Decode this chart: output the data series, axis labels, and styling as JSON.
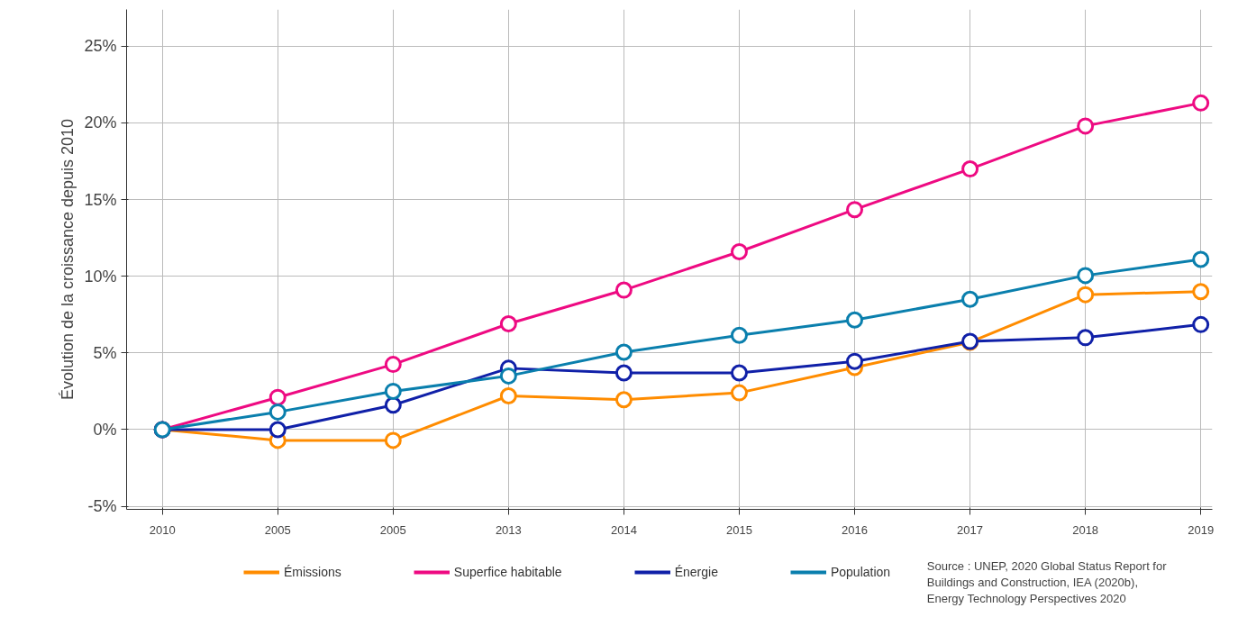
{
  "chart_data": {
    "type": "line",
    "ylabel": "Évolution de la croissance depuis 2010",
    "categories": [
      "2010",
      "2005",
      "2005",
      "2013",
      "2014",
      "2015",
      "2016",
      "2017",
      "2018",
      "2019"
    ],
    "series": [
      {
        "name": "Émissions",
        "color": "#ff8c00",
        "values": [
          0,
          -0.7,
          -0.7,
          2.2,
          1.95,
          2.4,
          4.05,
          5.7,
          8.8,
          9.0
        ]
      },
      {
        "name": "Superfice habitable",
        "color": "#ee0a82",
        "values": [
          0,
          2.1,
          4.25,
          6.9,
          9.1,
          11.6,
          14.35,
          17.0,
          19.8,
          21.3
        ]
      },
      {
        "name": "Énergie",
        "color": "#1020a8",
        "values": [
          0,
          0,
          1.6,
          4.0,
          3.7,
          3.7,
          4.45,
          5.75,
          6.0,
          6.85
        ]
      },
      {
        "name": "Population",
        "color": "#0a7fad",
        "values": [
          0,
          1.15,
          2.5,
          3.5,
          5.05,
          6.15,
          7.15,
          8.5,
          10.05,
          11.1
        ]
      }
    ],
    "ylim": [
      -5.2,
      27.4
    ],
    "yticks": [
      {
        "value": -5,
        "label": "-5%"
      },
      {
        "value": 0,
        "label": "0%"
      },
      {
        "value": 5,
        "label": "5%"
      },
      {
        "value": 10,
        "label": "10%"
      },
      {
        "value": 15,
        "label": "15%"
      },
      {
        "value": 20,
        "label": "20%"
      },
      {
        "value": 25,
        "label": "25%"
      }
    ],
    "grid": true,
    "legend": "bottom",
    "marker": "circle",
    "line_style": "solid",
    "annotations": [
      "Source : UNEP, 2020 Global Status Report for Buildings and Construction, IEA (2020b), Energy Technology Perspectives 2020"
    ]
  }
}
